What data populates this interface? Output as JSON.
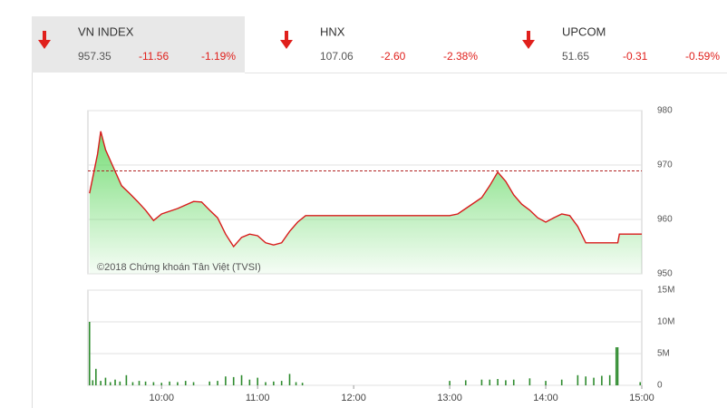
{
  "indices": [
    {
      "name": "VN INDEX",
      "value": "957.35",
      "change": "-11.56",
      "percent": "-1.19%"
    },
    {
      "name": "HNX",
      "value": "107.06",
      "change": "-2.60",
      "percent": "-2.38%"
    },
    {
      "name": "UPCOM",
      "value": "51.65",
      "change": "-0.31",
      "percent": "-0.59%"
    }
  ],
  "chart_data": [
    {
      "type": "line",
      "watermark": "©2018 Chứng khoán Tân Việt (TVSI)",
      "color": "#d81b1b",
      "fill_color": "#5cd65c",
      "reference_line": 968.91,
      "reference_color": "#b22222",
      "x": [
        555,
        560,
        562,
        565,
        570,
        575,
        580,
        585,
        590,
        595,
        600,
        610,
        620,
        625,
        630,
        635,
        640,
        645,
        650,
        655,
        660,
        665,
        670,
        675,
        680,
        685,
        690,
        780,
        785,
        790,
        800,
        805,
        810,
        815,
        820,
        825,
        830,
        835,
        840,
        845,
        850,
        855,
        860,
        865,
        870,
        885,
        886,
        900
      ],
      "values": [
        964.8,
        972,
        976.2,
        972.8,
        969.5,
        966.2,
        964.8,
        963.3,
        961.7,
        959.8,
        961,
        962,
        963.3,
        963.2,
        961.7,
        960.3,
        957.3,
        955,
        956.7,
        957.3,
        957,
        955.7,
        955.3,
        955.7,
        957.8,
        959.5,
        960.7,
        960.7,
        961,
        962,
        964,
        966.2,
        968.7,
        967,
        964.5,
        962.8,
        961.7,
        960.3,
        959.5,
        960.3,
        961,
        960.7,
        958.7,
        955.7,
        955.7,
        955.7,
        957.3,
        957.3
      ],
      "xlim": [
        554,
        900
      ],
      "ylim": [
        950,
        980
      ],
      "yticks": [
        950,
        960,
        970,
        980
      ],
      "grid": true
    },
    {
      "type": "bar",
      "color": "#2e8b2e",
      "x": [
        555,
        557,
        559,
        562,
        565,
        568,
        571,
        574,
        578,
        582,
        586,
        590,
        595,
        600,
        605,
        610,
        615,
        620,
        630,
        635,
        640,
        645,
        650,
        655,
        660,
        665,
        670,
        675,
        680,
        684,
        688,
        780,
        790,
        800,
        805,
        810,
        815,
        820,
        830,
        840,
        850,
        860,
        865,
        870,
        875,
        880,
        884,
        885,
        899
      ],
      "values": [
        10000000,
        800000,
        2600000,
        700000,
        1200000,
        500000,
        900000,
        600000,
        1600000,
        500000,
        700000,
        600000,
        500000,
        400000,
        600000,
        500000,
        700000,
        500000,
        600000,
        700000,
        1400000,
        1300000,
        1600000,
        900000,
        1200000,
        500000,
        600000,
        700000,
        1800000,
        500000,
        400000,
        700000,
        800000,
        900000,
        900000,
        1000000,
        800000,
        900000,
        1100000,
        700000,
        900000,
        1600000,
        1400000,
        1200000,
        1500000,
        1600000,
        6000000,
        6000000,
        500000
      ],
      "xlim": [
        554,
        900
      ],
      "ylim": [
        0,
        15000000
      ],
      "yticks": [
        {
          "value": 0,
          "label": "0"
        },
        {
          "value": 5000000,
          "label": "5M"
        },
        {
          "value": 10000000,
          "label": "10M"
        },
        {
          "value": 15000000,
          "label": "15M"
        }
      ],
      "xticks": [
        {
          "value": 600,
          "label": "10:00"
        },
        {
          "value": 660,
          "label": "11:00"
        },
        {
          "value": 720,
          "label": "12:00"
        },
        {
          "value": 780,
          "label": "13:00"
        },
        {
          "value": 840,
          "label": "14:00"
        },
        {
          "value": 900,
          "label": "15:00"
        }
      ],
      "grid": true
    }
  ]
}
